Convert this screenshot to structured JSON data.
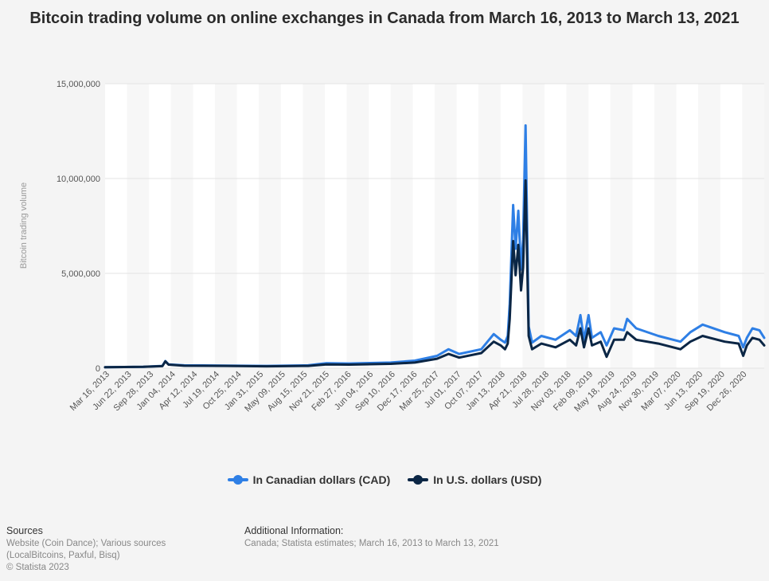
{
  "title": "Bitcoin trading volume on online exchanges in Canada from March 16, 2013 to March 13, 2021",
  "colors": {
    "cad": "#2e7fe5",
    "usd": "#0b2645"
  },
  "legend": [
    {
      "label": "In Canadian dollars (CAD)",
      "color_key": "cad"
    },
    {
      "label": "In U.S. dollars (USD)",
      "color_key": "usd"
    }
  ],
  "footer": {
    "sources_heading": "Sources",
    "sources_lines": [
      "Website (Coin Dance); Various sources",
      "(LocalBitcoins, Paxful, Bisq)"
    ],
    "copyright": "© Statista 2023",
    "additional_heading": "Additional Information:",
    "additional_text": "Canada; Statista estimates; March 16, 2013 to March 13, 2021"
  },
  "chart_data": {
    "type": "line",
    "ylabel": "Bitcoin trading volume",
    "ylim": [
      0,
      15000000
    ],
    "yticks": [
      0,
      5000000,
      10000000,
      15000000
    ],
    "ytick_labels": [
      "0",
      "5,000,000",
      "10,000,000",
      "15,000,000"
    ],
    "xlim": [
      "2013-03-16",
      "2021-03-13"
    ],
    "xtick_labels": [
      "Mar 16, 2013",
      "Jun 22, 2013",
      "Sep 28, 2013",
      "Jan 04, 2014",
      "Apr 12, 2014",
      "Jul 19, 2014",
      "Oct 25, 2014",
      "Jan 31, 2015",
      "May 09, 2015",
      "Aug 15, 2015",
      "Nov 21, 2015",
      "Feb 27, 2016",
      "Jun 04, 2016",
      "Sep 10, 2016",
      "Dec 17, 2016",
      "Mar 25, 2017",
      "Jul 01, 2017",
      "Oct 07, 2017",
      "Jan 13, 2018",
      "Apr 21, 2018",
      "Jul 28, 2018",
      "Nov 03, 2018",
      "Feb 09, 2019",
      "May 18, 2019",
      "Aug 24, 2019",
      "Nov 30, 2019",
      "Mar 07, 2020",
      "Jun 13, 2020",
      "Sep 19, 2020",
      "Dec 26, 2020"
    ],
    "grid": true,
    "legend_position": "bottom",
    "series": [
      {
        "name": "In Canadian dollars (CAD)",
        "color_key": "cad",
        "points": [
          [
            "2013-03-16",
            50000
          ],
          [
            "2013-09-01",
            70000
          ],
          [
            "2013-11-25",
            120000
          ],
          [
            "2013-12-08",
            380000
          ],
          [
            "2013-12-22",
            200000
          ],
          [
            "2014-03-01",
            150000
          ],
          [
            "2014-09-01",
            140000
          ],
          [
            "2015-03-01",
            120000
          ],
          [
            "2015-09-01",
            150000
          ],
          [
            "2015-11-21",
            260000
          ],
          [
            "2016-03-01",
            250000
          ],
          [
            "2016-09-01",
            300000
          ],
          [
            "2016-12-17",
            400000
          ],
          [
            "2017-03-25",
            650000
          ],
          [
            "2017-05-15",
            1000000
          ],
          [
            "2017-07-01",
            750000
          ],
          [
            "2017-10-07",
            1000000
          ],
          [
            "2017-12-01",
            1800000
          ],
          [
            "2018-01-01",
            1500000
          ],
          [
            "2018-01-20",
            1350000
          ],
          [
            "2018-02-01",
            1700000
          ],
          [
            "2018-02-10",
            3400000
          ],
          [
            "2018-02-25",
            8600000
          ],
          [
            "2018-03-08",
            6300000
          ],
          [
            "2018-03-20",
            8300000
          ],
          [
            "2018-04-01",
            5200000
          ],
          [
            "2018-04-10",
            6800000
          ],
          [
            "2018-04-21",
            12800000
          ],
          [
            "2018-05-05",
            2200000
          ],
          [
            "2018-05-20",
            1350000
          ],
          [
            "2018-06-30",
            1700000
          ],
          [
            "2018-09-01",
            1500000
          ],
          [
            "2018-11-03",
            2000000
          ],
          [
            "2018-12-01",
            1700000
          ],
          [
            "2018-12-20",
            2800000
          ],
          [
            "2019-01-05",
            1500000
          ],
          [
            "2019-01-25",
            2800000
          ],
          [
            "2019-02-09",
            1600000
          ],
          [
            "2019-03-20",
            1900000
          ],
          [
            "2019-04-15",
            1200000
          ],
          [
            "2019-05-18",
            2100000
          ],
          [
            "2019-07-01",
            2000000
          ],
          [
            "2019-07-15",
            2600000
          ],
          [
            "2019-08-24",
            2100000
          ],
          [
            "2019-11-30",
            1700000
          ],
          [
            "2020-03-07",
            1400000
          ],
          [
            "2020-04-20",
            1900000
          ],
          [
            "2020-06-13",
            2300000
          ],
          [
            "2020-09-19",
            1900000
          ],
          [
            "2020-11-20",
            1700000
          ],
          [
            "2020-12-10",
            1100000
          ],
          [
            "2020-12-26",
            1600000
          ],
          [
            "2021-01-20",
            2100000
          ],
          [
            "2021-02-20",
            2000000
          ],
          [
            "2021-03-13",
            1600000
          ]
        ]
      },
      {
        "name": "In U.S. dollars (USD)",
        "color_key": "usd",
        "points": [
          [
            "2013-03-16",
            50000
          ],
          [
            "2013-09-01",
            70000
          ],
          [
            "2013-11-25",
            110000
          ],
          [
            "2013-12-08",
            360000
          ],
          [
            "2013-12-22",
            190000
          ],
          [
            "2014-03-01",
            130000
          ],
          [
            "2014-09-01",
            120000
          ],
          [
            "2015-03-01",
            100000
          ],
          [
            "2015-09-01",
            120000
          ],
          [
            "2015-11-21",
            200000
          ],
          [
            "2016-03-01",
            190000
          ],
          [
            "2016-09-01",
            230000
          ],
          [
            "2016-12-17",
            300000
          ],
          [
            "2017-03-25",
            500000
          ],
          [
            "2017-05-15",
            750000
          ],
          [
            "2017-07-01",
            560000
          ],
          [
            "2017-10-07",
            800000
          ],
          [
            "2017-12-01",
            1400000
          ],
          [
            "2018-01-01",
            1200000
          ],
          [
            "2018-01-20",
            1000000
          ],
          [
            "2018-02-01",
            1300000
          ],
          [
            "2018-02-10",
            2600000
          ],
          [
            "2018-02-25",
            6700000
          ],
          [
            "2018-03-08",
            4900000
          ],
          [
            "2018-03-20",
            6500000
          ],
          [
            "2018-04-01",
            4100000
          ],
          [
            "2018-04-10",
            5300000
          ],
          [
            "2018-04-21",
            9900000
          ],
          [
            "2018-05-05",
            1700000
          ],
          [
            "2018-05-20",
            1000000
          ],
          [
            "2018-06-30",
            1300000
          ],
          [
            "2018-09-01",
            1100000
          ],
          [
            "2018-11-03",
            1500000
          ],
          [
            "2018-12-01",
            1200000
          ],
          [
            "2018-12-20",
            2100000
          ],
          [
            "2019-01-05",
            1100000
          ],
          [
            "2019-01-25",
            2100000
          ],
          [
            "2019-02-09",
            1200000
          ],
          [
            "2019-03-20",
            1400000
          ],
          [
            "2019-04-15",
            600000
          ],
          [
            "2019-05-18",
            1500000
          ],
          [
            "2019-07-01",
            1500000
          ],
          [
            "2019-07-15",
            1900000
          ],
          [
            "2019-08-24",
            1500000
          ],
          [
            "2019-11-30",
            1300000
          ],
          [
            "2020-03-07",
            1000000
          ],
          [
            "2020-04-20",
            1400000
          ],
          [
            "2020-06-13",
            1700000
          ],
          [
            "2020-09-19",
            1400000
          ],
          [
            "2020-11-20",
            1300000
          ],
          [
            "2020-12-10",
            650000
          ],
          [
            "2020-12-26",
            1200000
          ],
          [
            "2021-01-20",
            1600000
          ],
          [
            "2021-02-20",
            1500000
          ],
          [
            "2021-03-13",
            1200000
          ]
        ]
      }
    ]
  }
}
